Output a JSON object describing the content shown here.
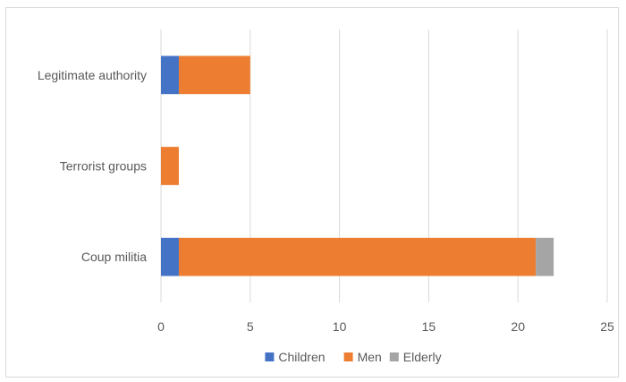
{
  "chart_data": {
    "type": "bar",
    "orientation": "horizontal",
    "stacked": true,
    "categories": [
      "Legitimate authority",
      "Terrorist groups",
      "Coup militia"
    ],
    "series": [
      {
        "name": "Children",
        "color": "#4472c4",
        "values": [
          1,
          0,
          1
        ]
      },
      {
        "name": "Men",
        "color": "#ed7d31",
        "values": [
          4,
          1,
          20
        ]
      },
      {
        "name": "Elderly",
        "color": "#a5a5a5",
        "values": [
          0,
          0,
          1
        ]
      }
    ],
    "xlim": [
      0,
      25
    ],
    "xticks": [
      "0",
      "5",
      "10",
      "15",
      "20",
      "25"
    ],
    "grid": true,
    "legend_position": "bottom",
    "title": "",
    "xlabel": "",
    "ylabel": ""
  }
}
